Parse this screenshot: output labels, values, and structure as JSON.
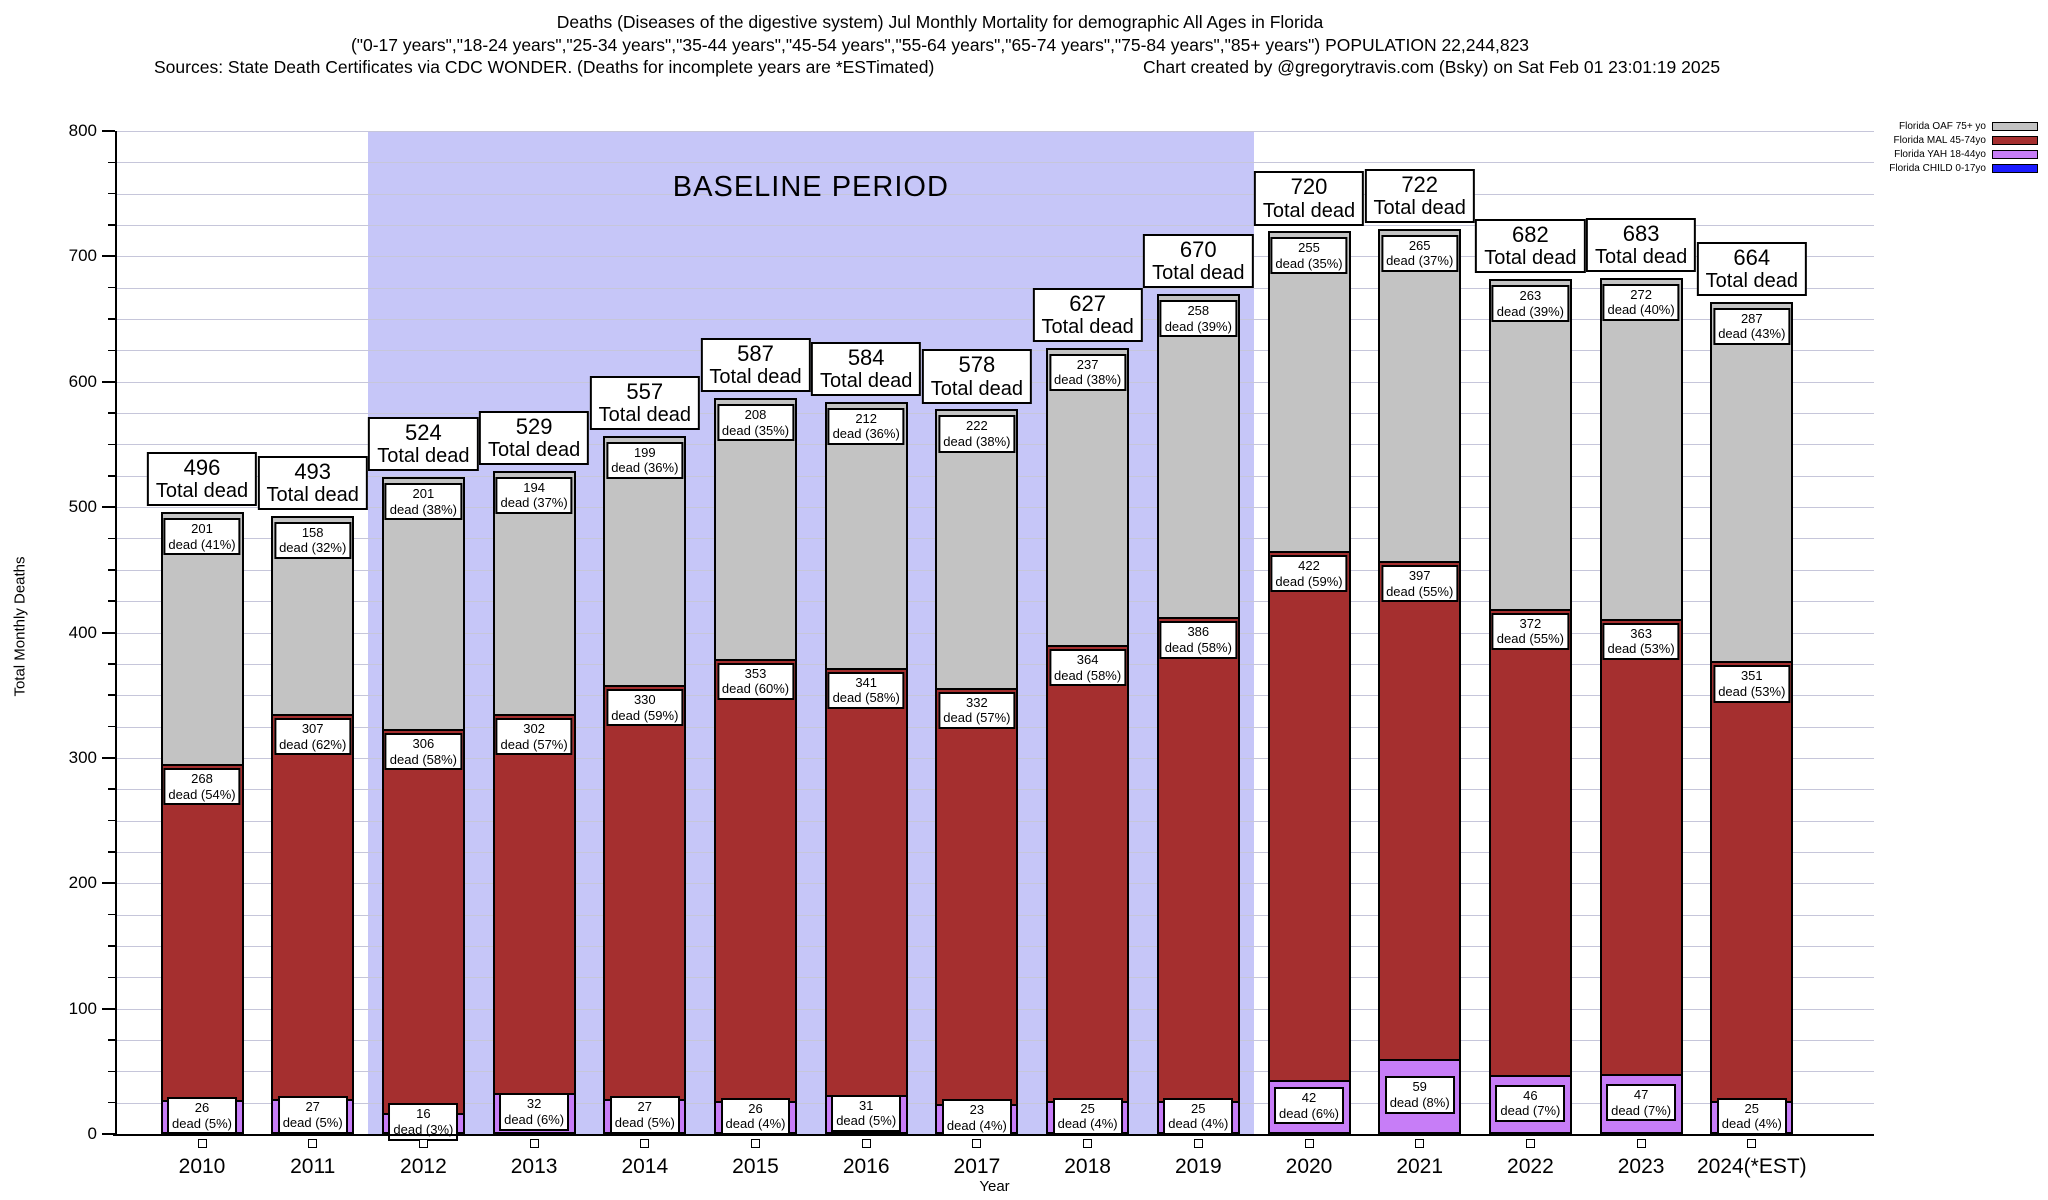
{
  "header": {
    "title": "Deaths (Diseases of the digestive system) Jul Monthly Mortality for demographic All Ages in Florida",
    "subtitle": "(\"0-17 years\",\"18-24 years\",\"25-34 years\",\"35-44 years\",\"45-54 years\",\"55-64 years\",\"65-74 years\",\"75-84 years\",\"85+ years\") POPULATION 22,244,823",
    "sources": "Sources: State Death Certificates via CDC WONDER. (Deaths for incomplete years are *ESTimated)",
    "credit": "Chart created by @gregorytravis.com (Bsky) on Sat Feb 01 23:01:19 2025"
  },
  "chart_data": {
    "type": "bar",
    "stacked": true,
    "title": "Deaths (Diseases of the digestive system) Jul Monthly Mortality for demographic All Ages in Florida",
    "xlabel": "Year",
    "ylabel": "Total Monthly Deaths",
    "ylim": [
      0,
      800
    ],
    "ytick_interval": 100,
    "minor_gridline_interval": 25,
    "grid": true,
    "legend_position": "top-right",
    "total_label_suffix": "Total dead",
    "segment_label_word": "dead",
    "baseline_period": {
      "label": "BASELINE PERIOD",
      "from": "2012",
      "to": "2019",
      "fill_color": "#c6c6f8"
    },
    "categories": [
      "2010",
      "2011",
      "2012",
      "2013",
      "2014",
      "2015",
      "2016",
      "2017",
      "2018",
      "2019",
      "2020",
      "2021",
      "2022",
      "2023",
      "2024(*EST)"
    ],
    "totals": [
      496,
      493,
      524,
      529,
      557,
      587,
      584,
      578,
      627,
      670,
      720,
      722,
      682,
      683,
      664
    ],
    "series": [
      {
        "key": "oaf",
        "name": "Florida OAF 75+ yo",
        "color": "#c3c3c3",
        "values": [
          201,
          158,
          201,
          194,
          199,
          208,
          212,
          222,
          237,
          258,
          255,
          265,
          263,
          272,
          287
        ],
        "percents": [
          41,
          32,
          38,
          37,
          36,
          35,
          36,
          38,
          38,
          39,
          35,
          37,
          39,
          40,
          43
        ]
      },
      {
        "key": "mal",
        "name": "Florida MAL 45-74yo",
        "color": "#a52f2f",
        "values": [
          268,
          307,
          306,
          302,
          330,
          353,
          341,
          332,
          364,
          386,
          422,
          397,
          372,
          363,
          351
        ],
        "percents": [
          54,
          62,
          58,
          57,
          59,
          60,
          58,
          57,
          58,
          58,
          59,
          55,
          55,
          53,
          53
        ]
      },
      {
        "key": "yah",
        "name": "Florida YAH 18-44yo",
        "color": "#c77df7",
        "values": [
          26,
          27,
          16,
          32,
          27,
          26,
          31,
          23,
          25,
          25,
          42,
          59,
          46,
          47,
          25
        ],
        "percents": [
          5,
          5,
          3,
          6,
          5,
          4,
          5,
          4,
          4,
          4,
          6,
          8,
          7,
          7,
          4
        ]
      },
      {
        "key": "child",
        "name": "Florida CHILD 0-17yo",
        "color": "#1a1aff",
        "values": [
          1,
          1,
          1,
          1,
          1,
          0,
          0,
          1,
          1,
          1,
          1,
          1,
          1,
          1,
          1
        ],
        "labels_shown": false
      }
    ]
  }
}
